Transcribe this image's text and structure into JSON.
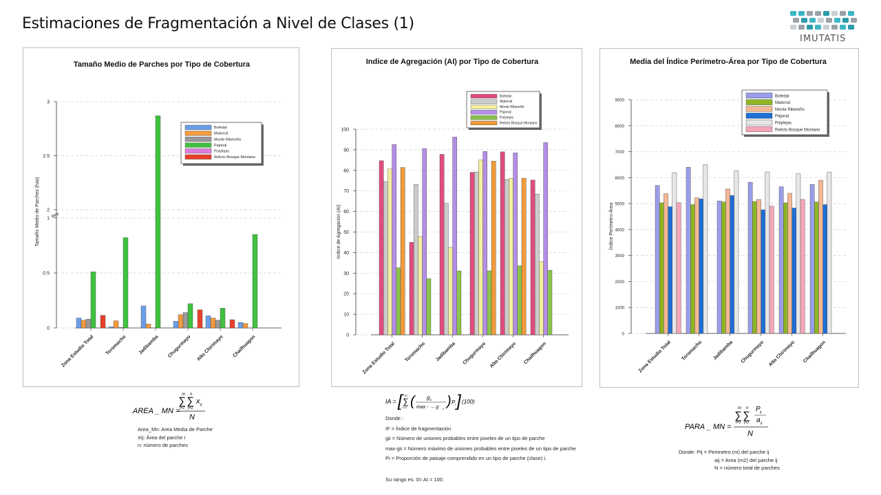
{
  "page": {
    "title": "Estimaciones de Fragmentación a Nivel de Clases (1)"
  },
  "logo": {
    "text": "IMUTATIS",
    "colors": [
      "#3fb6c4",
      "#9aa2a8",
      "#2c9aa8",
      "#c9ced2"
    ]
  },
  "colors": {
    "panel1": [
      "#6b9ee8",
      "#f39a3e",
      "#9a9a9a",
      "#3fc23f",
      "#e07de0",
      "#e8402a"
    ],
    "panel2": [
      "#e04d7d",
      "#cccccc",
      "#f4f0a0",
      "#b48ee6",
      "#8bc44a",
      "#f29a3a"
    ],
    "panel3": [
      "#9a9ee8",
      "#8db524",
      "#f4b894",
      "#1f6fd6",
      "#e6e6e6",
      "#f4a6b8"
    ]
  },
  "chart_data": [
    {
      "type": "bar",
      "title": "Tamaño Medio de Parches por Tipo de Cobertura",
      "ylabel": "Tamaño Medio de Parches (has)",
      "xlabel": "",
      "axis_break": true,
      "ylim": [
        0,
        3
      ],
      "yticks": [
        "0",
        "0.5",
        "1",
        "2",
        "2.5",
        "3"
      ],
      "grid": true,
      "legend_position": "top-right",
      "categories": [
        "Zona Estudio Total",
        "Toromacho",
        "Jadibamba",
        "Chugurmayo",
        "Alto Chirimayo",
        "Chailhuagon"
      ],
      "series": [
        {
          "name": "Bofedal",
          "values": [
            0.09,
            0.01,
            0.2,
            0.06,
            0.11,
            0.05
          ]
        },
        {
          "name": "Matorral",
          "values": [
            0.07,
            0.065,
            0.035,
            0.12,
            0.09,
            0.04
          ]
        },
        {
          "name": "Monte Ribereño",
          "values": [
            0.08,
            0.005,
            0,
            0.14,
            0.07,
            0
          ]
        },
        {
          "name": "Pajonal",
          "values": [
            0.51,
            0.82,
            2.87,
            0.22,
            0.18,
            0.85
          ]
        },
        {
          "name": "Polylepis",
          "values": [
            0,
            0,
            0,
            0,
            0,
            0
          ]
        },
        {
          "name": "Relicto Bosque Montano",
          "values": [
            0.115,
            0,
            0,
            0.165,
            0.075,
            0
          ]
        }
      ]
    },
    {
      "type": "bar",
      "title": "Indice de Agregación (AI) por Tipo de Cobertura",
      "ylabel": "Indice de Agregación (AI)",
      "xlabel": "",
      "ylim": [
        0,
        100
      ],
      "yticks": [
        "0",
        "10",
        "20",
        "30",
        "40",
        "50",
        "60",
        "70",
        "80",
        "90",
        "100"
      ],
      "grid": true,
      "legend_position": "top-center",
      "categories": [
        "Zona Estudio Total",
        "Toromacho",
        "Jadibamba",
        "Chugurmayo",
        "Alto Chirimayo",
        "Chailhuagon"
      ],
      "series": [
        {
          "name": "Bofedal",
          "values": [
            84.7,
            45,
            87.8,
            79,
            89,
            75.3
          ]
        },
        {
          "name": "Matorral",
          "values": [
            74.5,
            73.2,
            64,
            79.2,
            75.5,
            68.5
          ]
        },
        {
          "name": "Monte Ribereño",
          "values": [
            80.7,
            47.8,
            42.5,
            85,
            76.2,
            35.5
          ]
        },
        {
          "name": "Pajonal",
          "values": [
            92.6,
            90.6,
            96.2,
            89.2,
            88.5,
            93.5
          ]
        },
        {
          "name": "Polylepis",
          "values": [
            32.6,
            27.3,
            31.1,
            31.1,
            33.6,
            31.4
          ]
        },
        {
          "name": "Relicto Bosque Montano",
          "values": [
            81.4,
            0,
            0,
            84.5,
            76.2,
            0
          ]
        }
      ]
    },
    {
      "type": "bar",
      "title": "Media del Índice Perímetro-Área por Tipo de Cobertura",
      "ylabel": "Índice Perímetro-Área",
      "xlabel": "",
      "ylim": [
        0,
        9000
      ],
      "yticks": [
        "0",
        "1000",
        "2000",
        "3000",
        "4000",
        "5000",
        "6000",
        "7000",
        "8000",
        "9000"
      ],
      "grid": true,
      "legend_position": "top-center",
      "categories": [
        "Zona Estudio Total",
        "Toromacho",
        "Jadibamba",
        "Chugurmayo",
        "Alto Chirimayo",
        "Chailhuagon"
      ],
      "series": [
        {
          "name": "Bofedal",
          "values": [
            5700,
            6400,
            5100,
            5820,
            5650,
            5740
          ]
        },
        {
          "name": "Matorral",
          "values": [
            5030,
            4960,
            5060,
            5080,
            5030,
            5060
          ]
        },
        {
          "name": "Monte Ribereño",
          "values": [
            5380,
            5220,
            5560,
            5160,
            5400,
            5900
          ]
        },
        {
          "name": "Pajonal",
          "values": [
            4880,
            5180,
            5310,
            4760,
            4830,
            4960
          ]
        },
        {
          "name": "Polylepis",
          "values": [
            6190,
            6500,
            6270,
            6220,
            6150,
            6210
          ]
        },
        {
          "name": "Relicto Bosque Montano",
          "values": [
            5040,
            0,
            0,
            4900,
            5160,
            0
          ]
        }
      ]
    }
  ],
  "formulas": {
    "f1": {
      "lhs": "AREA _ MN =",
      "sum1_top": "m",
      "sum1_bottom": "i=1",
      "sum2_top": "n",
      "sum2_bottom": "j=1",
      "term": "x",
      "term_sub": "ij",
      "denominator": "N",
      "notes": [
        "Area_Mn: Area Media de Parche",
        "Xij: Área del parche i",
        "n: número de parches"
      ]
    },
    "f2": {
      "lhs": "IA =",
      "sum_top": "m",
      "sum_bottom": "i=1",
      "numer": "g",
      "numer_sub": "ii",
      "denom": "max - → g",
      "denom_sub": "ii",
      "after": "P",
      "after_sub": "i",
      "tail": "(100)",
      "notes": [
        "Donde :",
        "IF = Índice de fragmentación",
        "gii = Número de uniones probables entre pixeles de un tipo de parche",
        "max-gii = Número máximo de uniones probables entre pixeles de un tipo de parche",
        "Pi =  Proporción de paisaje comprendido en un tipo de parche (clase) i."
      ],
      "range": "Su rango es: 0= AI = 100."
    },
    "f3": {
      "lhs": "PARA _ MN =",
      "sum1_top": "m",
      "sum1_bottom": "i=1",
      "sum2_top": "n",
      "sum2_bottom": "j=1",
      "numer": "P",
      "numer_sub": "ij",
      "denom": "a",
      "denom_sub": "ij",
      "denominator": "N",
      "notes": [
        "Donde:  Pij = Perimetro (m) del parche ij",
        "aij = Area (m2) del parche ij",
        "N = número total de parches"
      ]
    }
  }
}
